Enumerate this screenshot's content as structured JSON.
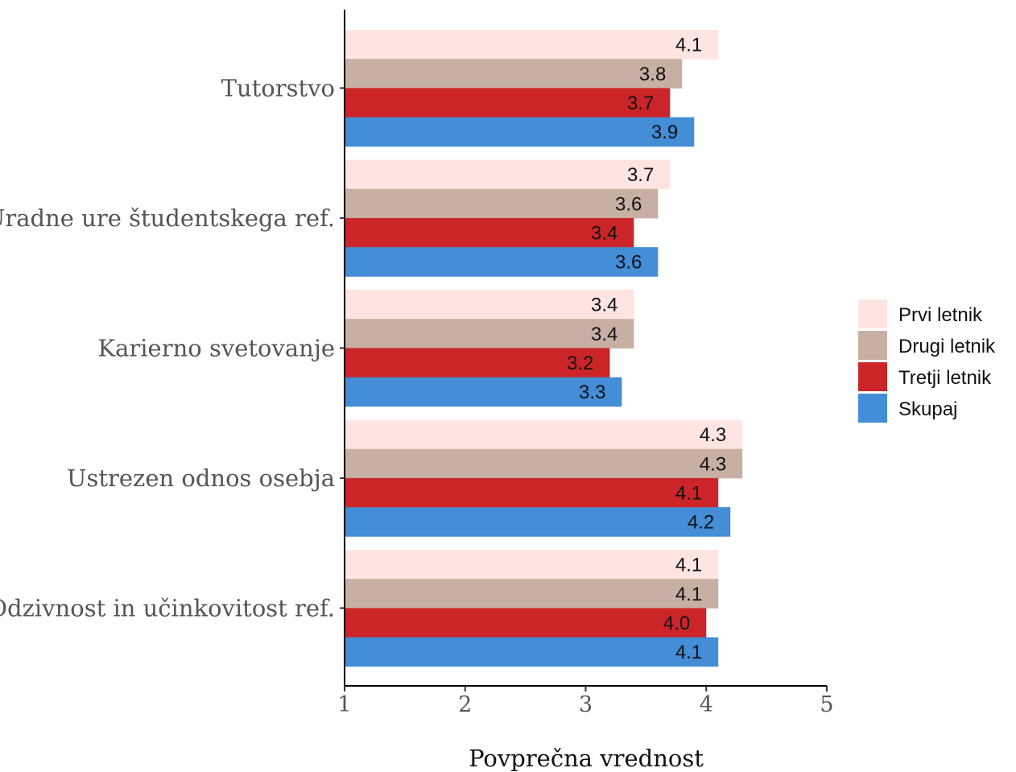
{
  "chart_data": {
    "type": "bar",
    "orientation": "horizontal",
    "categories": [
      "Tutorstvo",
      "Uradne ure študentskega ref.",
      "Karierno svetovanje",
      "Ustrezen odnos osebja",
      "Odzivnost in učinkovitost ref."
    ],
    "series": [
      {
        "name": "Prvi letnik",
        "color": "#FFE4E1",
        "values": [
          4.1,
          3.7,
          3.4,
          4.3,
          4.1
        ],
        "labels": [
          "4.1",
          "3.7",
          "3.4",
          "4.3",
          "4.1"
        ]
      },
      {
        "name": "Drugi letnik",
        "color": "#C8AFA3",
        "values": [
          3.8,
          3.6,
          3.4,
          4.3,
          4.1
        ],
        "labels": [
          "3.8",
          "3.6",
          "3.4",
          "4.3",
          "4.1"
        ]
      },
      {
        "name": "Tretji letnik",
        "color": "#CC2529",
        "values": [
          3.7,
          3.4,
          3.2,
          4.1,
          4.0
        ],
        "labels": [
          "3.7",
          "3.4",
          "3.2",
          "4.1",
          "4.0"
        ]
      },
      {
        "name": "Skupaj",
        "color": "#448DD7",
        "values": [
          3.9,
          3.6,
          3.3,
          4.2,
          4.1
        ],
        "labels": [
          "3.9",
          "3.6",
          "3.3",
          "4.2",
          "4.1"
        ]
      }
    ],
    "xlabel": "Povprečna vrednost",
    "ylabel": "",
    "xlim": [
      1,
      5
    ],
    "xticks": [
      1,
      2,
      3,
      4,
      5
    ],
    "xtick_labels": [
      "1",
      "2",
      "3",
      "4",
      "5"
    ],
    "grid": false,
    "legend": "right"
  }
}
